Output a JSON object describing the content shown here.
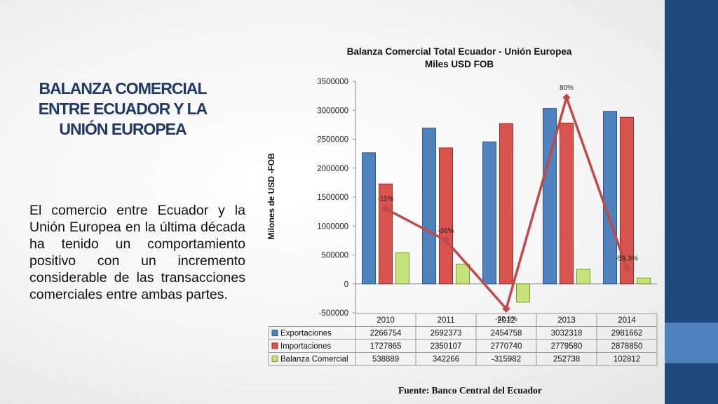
{
  "slide": {
    "title": "BALANZA COMERCIAL ENTRE ECUADOR  Y LA UNIÓN EUROPEA",
    "body": "El comercio entre Ecuador y la Unión Europea en la última década ha tenido un comportamiento positivo con un incremento considerable de las transacciones comerciales entre ambas partes.",
    "source": "Fuente: Banco Central del Ecuador"
  },
  "colors": {
    "title": "#1f3864",
    "band": "#1f497d",
    "band_accent": "#4f81bd",
    "exportaciones": "#4f81bd",
    "importaciones": "#d9534f",
    "balanza": "#c5e37a",
    "growth_line": "#be4b48"
  },
  "chart_data": {
    "type": "bar",
    "title_line1": "Balanza Comercial Total  Ecuador - Unión Europea",
    "title_line2": "Miles USD FOB",
    "ylabel": "Milones de USD -FOB",
    "xlabel": "",
    "ylim": [
      -500000,
      3500000
    ],
    "yticks": [
      "3500000",
      "3000000",
      "2500000",
      "2000000",
      "1500000",
      "1000000",
      "500000",
      "0",
      "-500000"
    ],
    "categories": [
      "2010",
      "2011",
      "2012",
      "2013",
      "2014"
    ],
    "series": [
      {
        "name": "Exportaciones",
        "values": [
          2266754,
          2692373,
          2454758,
          3032318,
          2981662
        ],
        "display": [
          "2266754",
          "2692373",
          "2454758",
          "3032318",
          "2981662"
        ]
      },
      {
        "name": "Importaciones",
        "values": [
          1727865,
          2350107,
          2770740,
          2779580,
          2878850
        ],
        "display": [
          "1727865",
          "2350107",
          "2770740",
          "2779580",
          "2878850"
        ]
      },
      {
        "name": "Balanza Comercial",
        "values": [
          538889,
          342266,
          -315982,
          252738,
          102812
        ],
        "display": [
          "538889",
          "342266",
          "-315982",
          "252738",
          "102812"
        ]
      }
    ],
    "growth_line": {
      "labels": [
        "-11%",
        "-36%",
        "-92.3%",
        "80%",
        "-59.3%"
      ],
      "values": [
        1300000,
        750000,
        -430000,
        3220000,
        270000
      ]
    },
    "grid": false,
    "legend": "data-table"
  }
}
